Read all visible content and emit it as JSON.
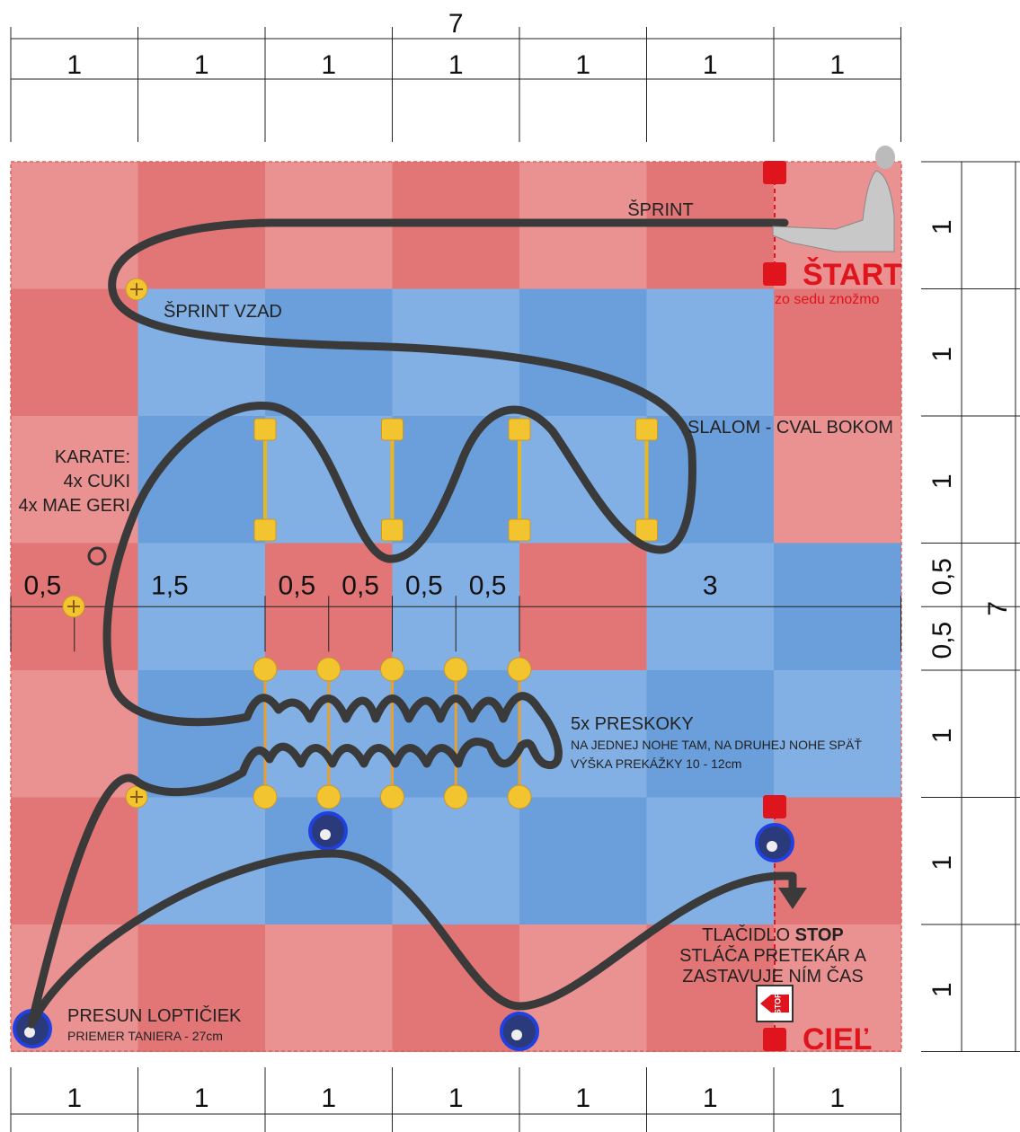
{
  "dimensions": {
    "top_total": "7",
    "top_units": [
      "1",
      "1",
      "1",
      "1",
      "1",
      "1",
      "1"
    ],
    "right_units": [
      "1",
      "1",
      "1",
      "0,5",
      "0,5",
      "1",
      "1",
      "1"
    ],
    "right_total": "7",
    "bottom_units": [
      "1",
      "1",
      "1",
      "1",
      "1",
      "1",
      "1"
    ],
    "middle": [
      "0,5",
      "1,5",
      "0,5",
      "0,5",
      "0,5",
      "0,5",
      "3"
    ]
  },
  "labels": {
    "sprint": "ŠPRINT",
    "start": "ŠTART",
    "start_note": "zo sedu znožmo",
    "sprint_back": "ŠPRINT VZAD",
    "slalom": "SLALOM - CVAL BOKOM",
    "karate": [
      "KARATE:",
      "4x CUKI",
      "4x MAE GERI"
    ],
    "jumps": "5x PRESKOKY",
    "jumps_note": "NA JEDNEJ NOHE TAM, NA DRUHEJ NOHE SPÄŤ",
    "jumps_height": "VÝŠKA PREKÁŽKY  10 - 12cm",
    "stop_prefix": "TLAČIDLO",
    "stop_emphasis": "STOP",
    "stop_lines": [
      "STLÁČA PRETEKÁR A",
      "ZASTAVUJE NÍM ČAS"
    ],
    "balls": "PRESUN LOPTIČIEK",
    "plate": "PRIEMER TANIERA  - 27cm",
    "finish": "CIEĽ",
    "stop_button": "STOP"
  }
}
